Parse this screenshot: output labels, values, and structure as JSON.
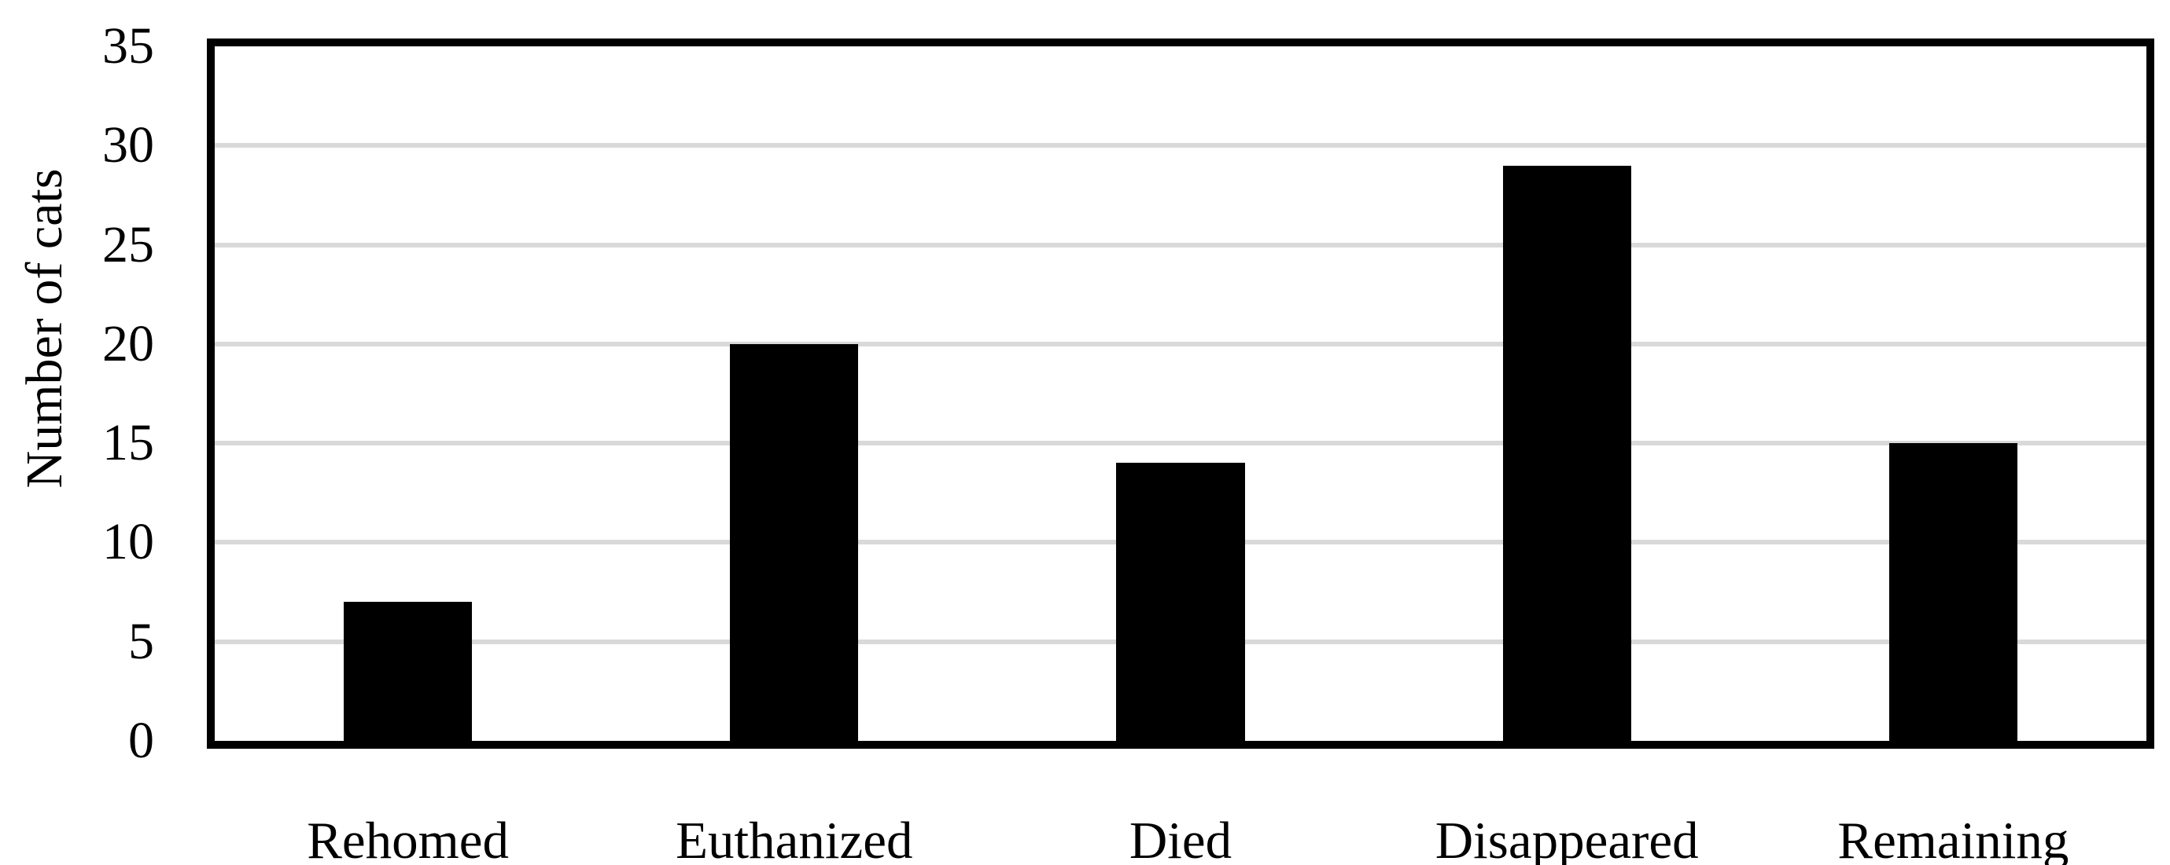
{
  "chart_data": {
    "type": "bar",
    "title": "",
    "categories": [
      "Rehomed",
      "Euthanized",
      "Died",
      "Disappeared",
      "Remaining"
    ],
    "values": [
      7,
      20,
      14,
      29,
      15
    ],
    "xlabel": "",
    "ylabel": "Number of cats",
    "ylim": [
      0,
      35
    ],
    "yticks": [
      0,
      5,
      10,
      15,
      20,
      25,
      30,
      35
    ],
    "grid": "horizontal-only",
    "legend": "none",
    "bar_color": "#000000",
    "gridline_color": "#d9d9d9",
    "plot_border_color": "#000000",
    "text_color": "#000000",
    "background_color": "#ffffff"
  }
}
